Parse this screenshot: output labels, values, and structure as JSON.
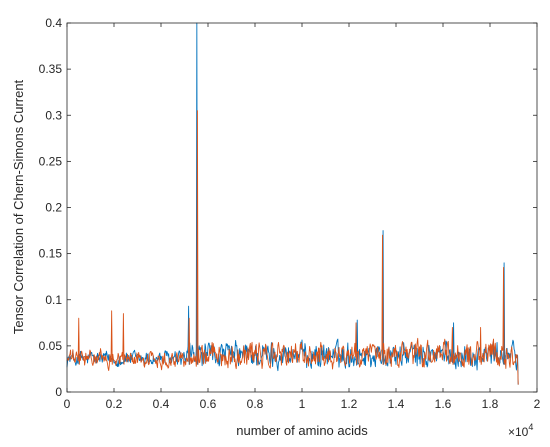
{
  "chart_data": {
    "type": "line",
    "title": "",
    "xlabel": "number of amino acids",
    "ylabel": "Tensor Correlation of Chern-Simons Current",
    "xlim": [
      0,
      20000
    ],
    "ylim": [
      0,
      0.4
    ],
    "x_ticks": [
      0,
      2000,
      4000,
      6000,
      8000,
      10000,
      12000,
      14000,
      16000,
      18000,
      20000
    ],
    "x_tick_labels": [
      "0",
      "0.2",
      "0.4",
      "0.6",
      "0.8",
      "1",
      "1.2",
      "1.4",
      "1.6",
      "1.8",
      "2"
    ],
    "x_exponent_label": "×10",
    "x_exponent_power": "4",
    "y_ticks": [
      0,
      0.05,
      0.1,
      0.15,
      0.2,
      0.25,
      0.3,
      0.35,
      0.4
    ],
    "y_tick_labels": [
      "0",
      "0.05",
      "0.1",
      "0.15",
      "0.2",
      "0.25",
      "0.3",
      "0.35",
      "0.4"
    ],
    "grid": false,
    "x_data_end": 19200,
    "baseline_noise": {
      "segments": [
        {
          "x_start": 0,
          "x_end": 5000,
          "mean": 0.036,
          "amplitude": 0.012
        },
        {
          "x_start": 5000,
          "x_end": 19200,
          "mean": 0.04,
          "amplitude": 0.02
        }
      ]
    },
    "series": [
      {
        "color": "#0072BD",
        "peaks": [
          {
            "x": 5180,
            "y": 0.093
          },
          {
            "x": 5530,
            "y": 0.4
          },
          {
            "x": 13450,
            "y": 0.175
          },
          {
            "x": 18600,
            "y": 0.14
          },
          {
            "x": 12350,
            "y": 0.078
          },
          {
            "x": 16450,
            "y": 0.075
          }
        ]
      },
      {
        "color": "#D95319",
        "peaks": [
          {
            "x": 500,
            "y": 0.08
          },
          {
            "x": 1900,
            "y": 0.088
          },
          {
            "x": 2400,
            "y": 0.085
          },
          {
            "x": 5200,
            "y": 0.08
          },
          {
            "x": 5550,
            "y": 0.305
          },
          {
            "x": 13430,
            "y": 0.17
          },
          {
            "x": 18580,
            "y": 0.135
          },
          {
            "x": 12300,
            "y": 0.075
          },
          {
            "x": 16400,
            "y": 0.07
          },
          {
            "x": 17600,
            "y": 0.07
          }
        ]
      }
    ]
  }
}
